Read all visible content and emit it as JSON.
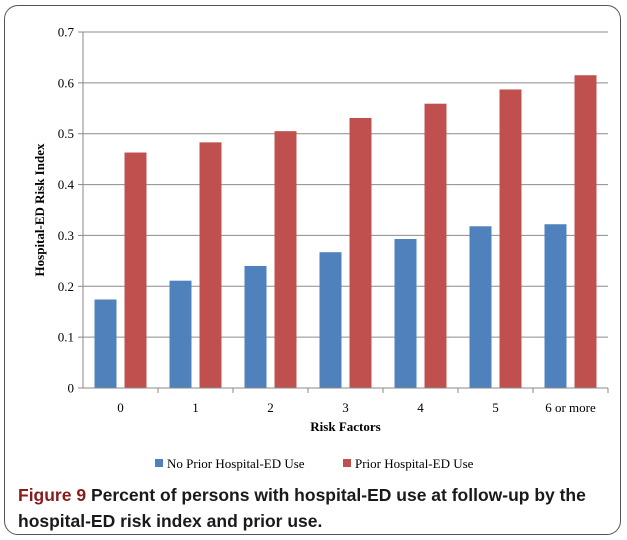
{
  "chart_data": {
    "type": "bar",
    "categories": [
      "0",
      "1",
      "2",
      "3",
      "4",
      "5",
      "6 or more"
    ],
    "series": [
      {
        "name": "No Prior Hospital-ED Use",
        "color": "#4f81bd",
        "values": [
          0.174,
          0.211,
          0.24,
          0.267,
          0.293,
          0.318,
          0.322
        ]
      },
      {
        "name": "Prior Hospital-ED Use",
        "color": "#c0504d",
        "values": [
          0.463,
          0.483,
          0.505,
          0.531,
          0.559,
          0.587,
          0.615
        ]
      }
    ],
    "xlabel": "Risk Factors",
    "ylabel": "Hospital-ED Risk Index",
    "ylim": [
      0,
      0.7
    ],
    "yticks": [
      "0",
      "0.1",
      "0.2",
      "0.3",
      "0.4",
      "0.5",
      "0.6",
      "0.7"
    ],
    "grid": true,
    "legend": "bottom"
  },
  "caption": {
    "label": "Figure 9",
    "text": "Percent of persons with hospital-ED use at follow-up by the hospital-ED risk index and prior use."
  }
}
